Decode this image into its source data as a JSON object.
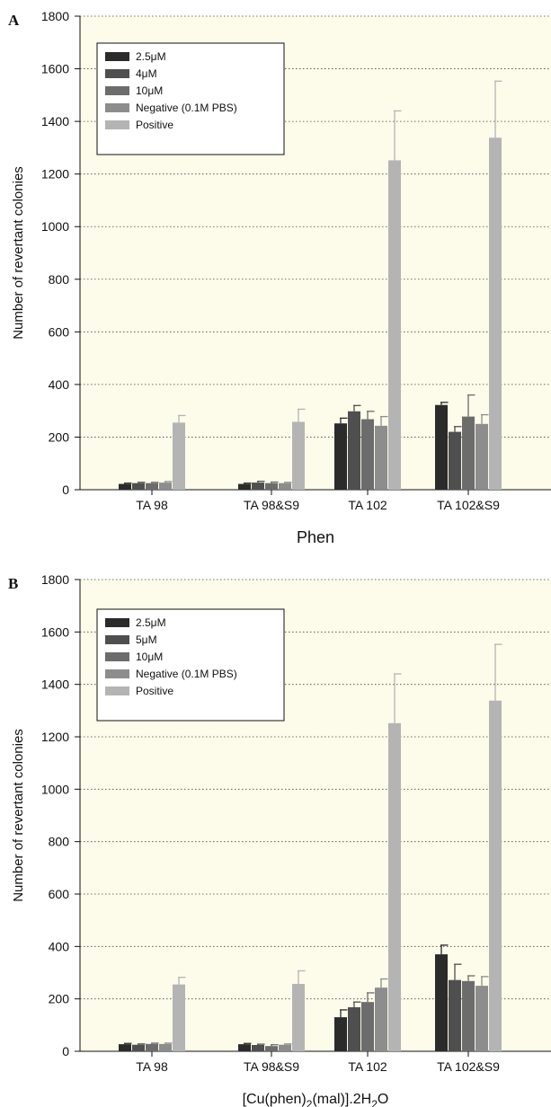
{
  "colors": {
    "plot_bg": "#fdfbea",
    "series": [
      "#2b2b2b",
      "#4f4f4f",
      "#6c6c6c",
      "#8d8d8d",
      "#b4b4b4"
    ],
    "grid": "#444444"
  },
  "chart_data": [
    {
      "panel": "A",
      "type": "bar",
      "xlabel": "Phen",
      "ylabel": "Number of revertant colonies",
      "ylim": [
        0,
        1800
      ],
      "yticks": [
        0,
        200,
        400,
        600,
        800,
        1000,
        1200,
        1400,
        1600,
        1800
      ],
      "grid": "horizontal dotted",
      "legend_position": "top-left",
      "categories": [
        "TA 98",
        "TA 98&S9",
        "TA 102",
        "TA 102&S9"
      ],
      "series": [
        {
          "name": "2.5μM",
          "values": [
            22,
            22,
            252,
            322
          ],
          "errors": [
            3,
            3,
            20,
            10
          ]
        },
        {
          "name": "4μM",
          "values": [
            25,
            27,
            298,
            220
          ],
          "errors": [
            3,
            5,
            22,
            20
          ]
        },
        {
          "name": "10μM",
          "values": [
            25,
            25,
            268,
            278
          ],
          "errors": [
            3,
            4,
            30,
            82
          ]
        },
        {
          "name": "Negative (0.1M PBS)",
          "values": [
            27,
            25,
            243,
            250
          ],
          "errors": [
            4,
            3,
            35,
            35
          ]
        },
        {
          "name": "Positive",
          "values": [
            255,
            258,
            1252,
            1338
          ],
          "errors": [
            27,
            48,
            188,
            215
          ]
        }
      ]
    },
    {
      "panel": "B",
      "type": "bar",
      "xlabel": "[Cu(phen)2(mal)].2H2O",
      "xlabel_parts": [
        "[Cu(phen)",
        "2",
        "(mal)].2H",
        "2",
        "O"
      ],
      "ylabel": "Number of revertant colonies",
      "ylim": [
        0,
        1800
      ],
      "yticks": [
        0,
        200,
        400,
        600,
        800,
        1000,
        1200,
        1400,
        1600,
        1800
      ],
      "grid": "horizontal dotted",
      "legend_position": "top-left",
      "categories": [
        "TA 98",
        "TA 98&S9",
        "TA 102",
        "TA 102&S9"
      ],
      "series": [
        {
          "name": "2.5μM",
          "values": [
            27,
            27,
            130,
            370
          ],
          "errors": [
            3,
            3,
            28,
            35
          ]
        },
        {
          "name": "5μM",
          "values": [
            25,
            24,
            168,
            272
          ],
          "errors": [
            3,
            3,
            20,
            60
          ]
        },
        {
          "name": "10μM",
          "values": [
            28,
            20,
            188,
            268
          ],
          "errors": [
            3,
            5,
            35,
            20
          ]
        },
        {
          "name": " Negative (0.1M PBS)",
          "values": [
            28,
            25,
            243,
            250
          ],
          "errors": [
            3,
            3,
            33,
            35
          ]
        },
        {
          "name": "Positive",
          "values": [
            255,
            257,
            1252,
            1338
          ],
          "errors": [
            27,
            50,
            188,
            215
          ]
        }
      ]
    }
  ]
}
